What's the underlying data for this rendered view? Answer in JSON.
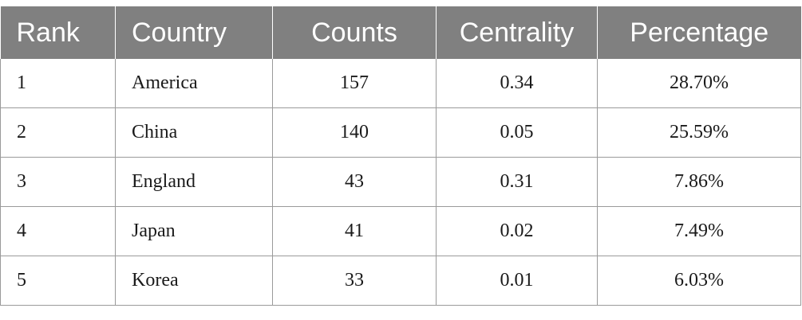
{
  "table": {
    "headers": [
      "Rank",
      "Country",
      "Counts",
      "Centrality",
      "Percentage"
    ],
    "rows": [
      {
        "rank": "1",
        "country": "America",
        "counts": "157",
        "centrality": "0.34",
        "percentage": "28.70%"
      },
      {
        "rank": "2",
        "country": "China",
        "counts": "140",
        "centrality": "0.05",
        "percentage": "25.59%"
      },
      {
        "rank": "3",
        "country": "England",
        "counts": "43",
        "centrality": "0.31",
        "percentage": "7.86%"
      },
      {
        "rank": "4",
        "country": "Japan",
        "counts": "41",
        "centrality": "0.02",
        "percentage": "7.49%"
      },
      {
        "rank": "5",
        "country": "Korea",
        "counts": "33",
        "centrality": "0.01",
        "percentage": "6.03%"
      }
    ]
  },
  "colors": {
    "header_bg": "#808080",
    "header_text": "#ffffff",
    "border": "#9a9a9a"
  }
}
